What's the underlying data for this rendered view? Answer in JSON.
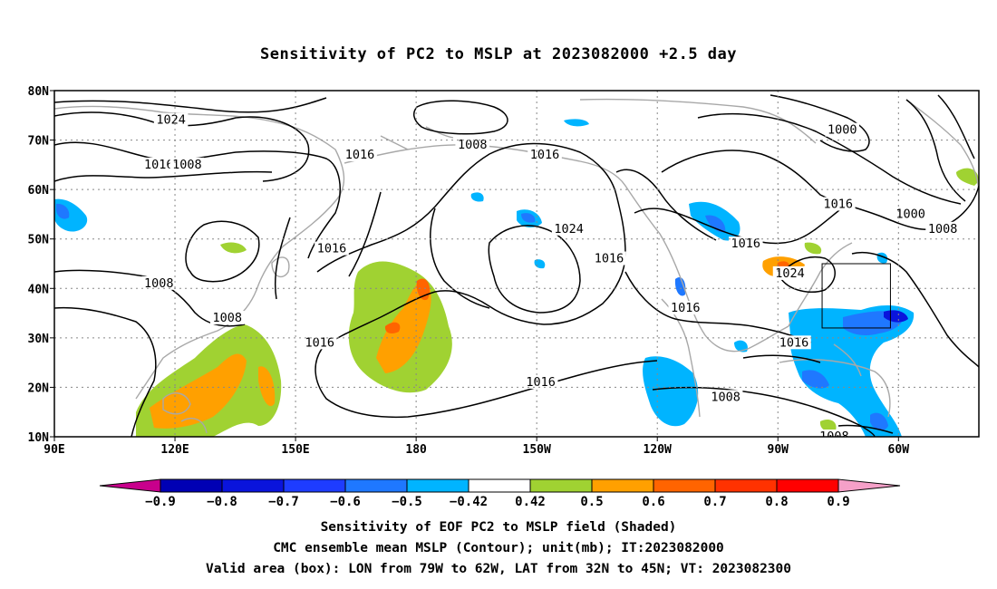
{
  "title": "Sensitivity of PC2 to MSLP at 2023082000 +2.5 day",
  "axes": {
    "lat_labels": [
      "80N",
      "70N",
      "60N",
      "50N",
      "40N",
      "30N",
      "20N",
      "10N"
    ],
    "lon_labels": [
      "90E",
      "120E",
      "150E",
      "180",
      "150W",
      "120W",
      "90W",
      "60W"
    ]
  },
  "contour_labels": [
    {
      "text": "1024",
      "lon": 119,
      "lat": 74
    },
    {
      "text": "1016",
      "lon": 116,
      "lat": 65
    },
    {
      "text": "1008",
      "lon": 123,
      "lat": 65
    },
    {
      "text": "1016",
      "lon": 166,
      "lat": 67
    },
    {
      "text": "1008",
      "lon": 194,
      "lat": 69
    },
    {
      "text": "1016",
      "lon": 212,
      "lat": 67
    },
    {
      "text": "1024",
      "lon": 218,
      "lat": 52
    },
    {
      "text": "1016",
      "lon": 228,
      "lat": 46
    },
    {
      "text": "1016",
      "lon": 159,
      "lat": 48
    },
    {
      "text": "1008",
      "lon": 116,
      "lat": 41
    },
    {
      "text": "1008",
      "lon": 133,
      "lat": 34
    },
    {
      "text": "1016",
      "lon": 156,
      "lat": 29
    },
    {
      "text": "1016",
      "lon": 211,
      "lat": 21
    },
    {
      "text": "1016",
      "lon": 247,
      "lat": 36
    },
    {
      "text": "1016",
      "lon": 262,
      "lat": 49
    },
    {
      "text": "1024",
      "lon": 273,
      "lat": 43
    },
    {
      "text": "1008",
      "lon": 257,
      "lat": 18
    },
    {
      "text": "1016",
      "lon": 274,
      "lat": 29
    },
    {
      "text": "1016",
      "lon": 285,
      "lat": 57
    },
    {
      "text": "1000",
      "lon": 286,
      "lat": 72
    },
    {
      "text": "1000",
      "lon": 303,
      "lat": 55
    },
    {
      "text": "1008",
      "lon": 311,
      "lat": 52
    },
    {
      "text": "1008",
      "lon": 284,
      "lat": 10
    }
  ],
  "valid_area": {
    "lon_min": -79,
    "lon_max": -62,
    "lat_min": 32,
    "lat_max": 45
  },
  "colorbar": {
    "colors": [
      "#c8008c",
      "#0000b4",
      "#0a14dc",
      "#1e3cff",
      "#1f78ff",
      "#00b4ff",
      "#ffffff",
      "#a0d232",
      "#ffa000",
      "#ff6400",
      "#ff3200",
      "#ff0000",
      "#f5a0c8"
    ],
    "labels": [
      "−0.9",
      "−0.8",
      "−0.7",
      "−0.6",
      "−0.5",
      "−0.42",
      "0.42",
      "0.5",
      "0.6",
      "0.7",
      "0.8",
      "0.9"
    ]
  },
  "captions": {
    "line1": "Sensitivity of EOF PC2 to MSLP field (Shaded)",
    "line2": "CMC ensemble mean MSLP (Contour); unit(mb); IT:2023082000",
    "line3": "Valid area (box): LON from 79W to 62W, LAT from 32N to 45N; VT: 2023082300"
  }
}
